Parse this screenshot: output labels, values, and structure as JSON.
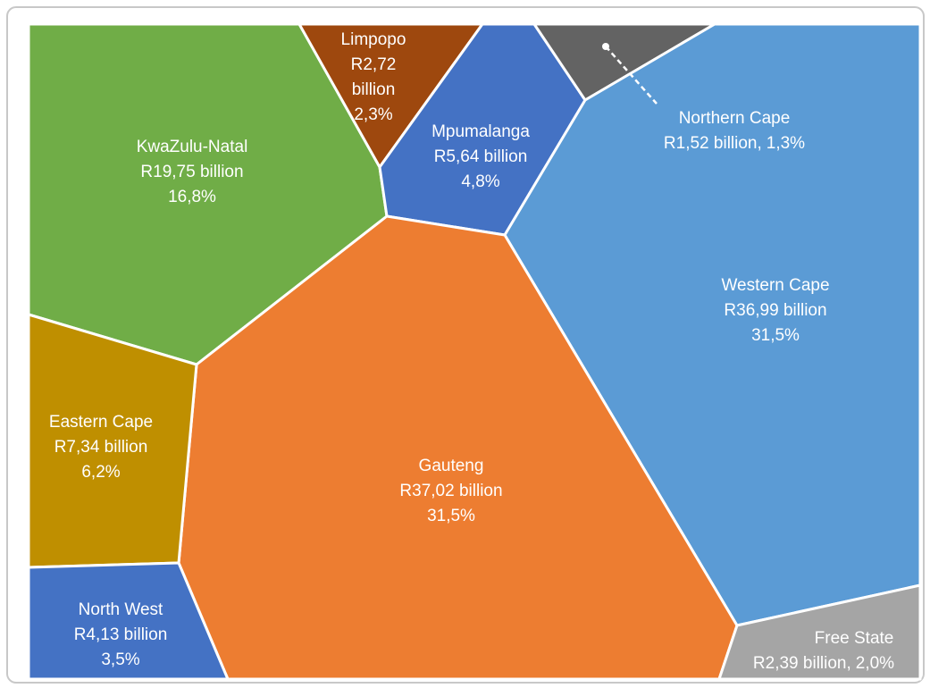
{
  "chart_data": {
    "type": "voronoi",
    "categories": [
      "KwaZulu-Natal",
      "Limpopo",
      "Mpumalanga",
      "Northern Cape",
      "Western Cape",
      "Gauteng",
      "Eastern Cape",
      "North West",
      "Free State"
    ],
    "values": [
      19.75,
      2.72,
      5.64,
      1.52,
      36.99,
      37.02,
      7.34,
      4.13,
      2.39
    ],
    "value_labels": [
      "R19,75 billion",
      "R2,72 billion",
      "R5,64 billion",
      "R1,52 billion,",
      "R36,99 billion",
      "R37,02 billion",
      "R7,34 billion",
      "R4,13 billion",
      "R2,39 billion,"
    ],
    "shares": [
      16.8,
      2.3,
      4.8,
      1.3,
      31.5,
      31.5,
      6.2,
      3.5,
      2.0
    ],
    "share_labels": [
      "16,8%",
      "2,3%",
      "4,8%",
      "1,3%",
      "31,5%",
      "31,5%",
      "6,2%",
      "3,5%",
      "2,0%"
    ],
    "colors": [
      "#70ad47",
      "#9e480e",
      "#4472c4",
      "#636363",
      "#5b9bd5",
      "#ed7d31",
      "#bf8f00",
      "#4472c4",
      "#a5a5a5"
    ]
  }
}
